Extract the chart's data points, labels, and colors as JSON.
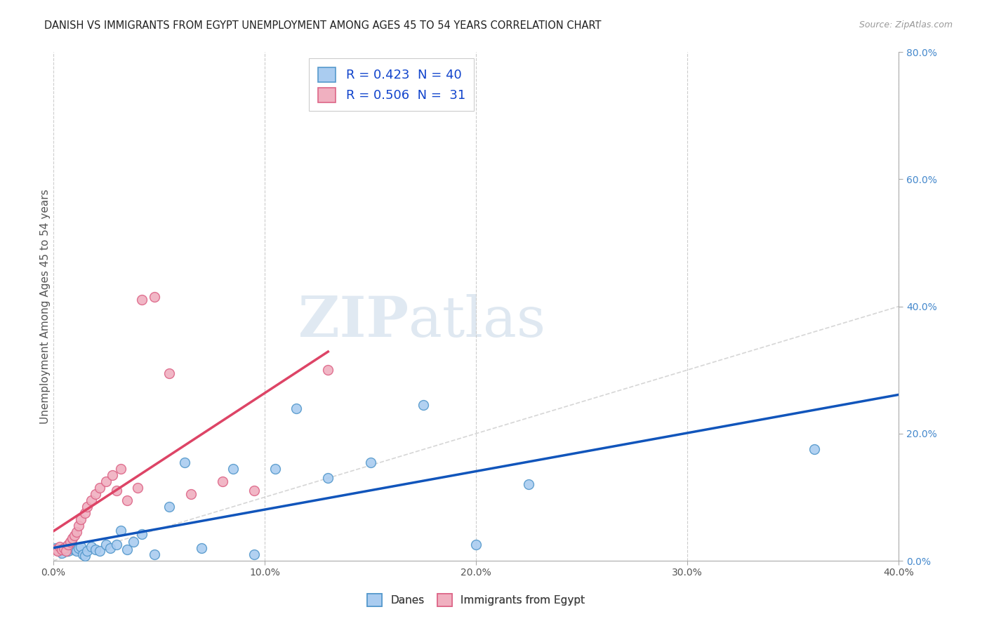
{
  "title": "DANISH VS IMMIGRANTS FROM EGYPT UNEMPLOYMENT AMONG AGES 45 TO 54 YEARS CORRELATION CHART",
  "source": "Source: ZipAtlas.com",
  "ylabel": "Unemployment Among Ages 45 to 54 years",
  "xlim": [
    0.0,
    0.4
  ],
  "ylim": [
    0.0,
    0.8
  ],
  "xticks": [
    0.0,
    0.1,
    0.2,
    0.3,
    0.4
  ],
  "yticks_right": [
    0.0,
    0.2,
    0.4,
    0.6,
    0.8
  ],
  "xticklabels": [
    "0.0%",
    "10.0%",
    "20.0%",
    "30.0%",
    "40.0%"
  ],
  "yticklabels_right": [
    "0.0%",
    "20.0%",
    "40.0%",
    "60.0%",
    "80.0%"
  ],
  "danes_color": "#aaccf0",
  "danes_edge_color": "#5599cc",
  "egypt_color": "#f0b0c0",
  "egypt_edge_color": "#dd6688",
  "trendline_danes_color": "#1155bb",
  "trendline_egypt_color": "#dd4466",
  "diagonal_color": "#cccccc",
  "legend_danes_label": "R = 0.423  N = 40",
  "legend_egypt_label": "R = 0.506  N =  31",
  "legend_label_danes": "Danes",
  "legend_label_egypt": "Immigrants from Egypt",
  "danes_x": [
    0.001,
    0.002,
    0.003,
    0.004,
    0.005,
    0.006,
    0.007,
    0.008,
    0.009,
    0.01,
    0.011,
    0.012,
    0.013,
    0.014,
    0.015,
    0.016,
    0.018,
    0.02,
    0.022,
    0.025,
    0.027,
    0.03,
    0.032,
    0.035,
    0.038,
    0.042,
    0.048,
    0.055,
    0.062,
    0.07,
    0.085,
    0.095,
    0.105,
    0.115,
    0.13,
    0.15,
    0.175,
    0.2,
    0.225,
    0.36
  ],
  "danes_y": [
    0.02,
    0.018,
    0.015,
    0.012,
    0.018,
    0.022,
    0.015,
    0.02,
    0.025,
    0.018,
    0.015,
    0.02,
    0.022,
    0.01,
    0.008,
    0.015,
    0.022,
    0.018,
    0.015,
    0.025,
    0.02,
    0.025,
    0.048,
    0.018,
    0.03,
    0.042,
    0.01,
    0.085,
    0.155,
    0.02,
    0.145,
    0.01,
    0.145,
    0.24,
    0.13,
    0.155,
    0.245,
    0.025,
    0.12,
    0.175
  ],
  "egypt_x": [
    0.001,
    0.002,
    0.003,
    0.004,
    0.005,
    0.006,
    0.007,
    0.008,
    0.009,
    0.01,
    0.011,
    0.012,
    0.013,
    0.015,
    0.016,
    0.018,
    0.02,
    0.022,
    0.025,
    0.028,
    0.03,
    0.032,
    0.035,
    0.04,
    0.042,
    0.048,
    0.055,
    0.065,
    0.08,
    0.095,
    0.13
  ],
  "egypt_y": [
    0.018,
    0.015,
    0.022,
    0.018,
    0.02,
    0.015,
    0.025,
    0.03,
    0.035,
    0.04,
    0.045,
    0.055,
    0.065,
    0.075,
    0.085,
    0.095,
    0.105,
    0.115,
    0.125,
    0.135,
    0.11,
    0.145,
    0.095,
    0.115,
    0.41,
    0.415,
    0.295,
    0.105,
    0.125,
    0.11,
    0.3
  ],
  "watermark_zip": "ZIP",
  "watermark_atlas": "atlas",
  "marker_size": 100,
  "grid_color": "#cccccc",
  "grid_style": "--",
  "background_color": "#ffffff",
  "legend_text_color": "#1144cc",
  "legend_box_color": "#dddddd",
  "tick_color_x": "#555555",
  "tick_color_y": "#4488cc",
  "ylabel_color": "#555555",
  "title_color": "#222222",
  "source_color": "#999999"
}
